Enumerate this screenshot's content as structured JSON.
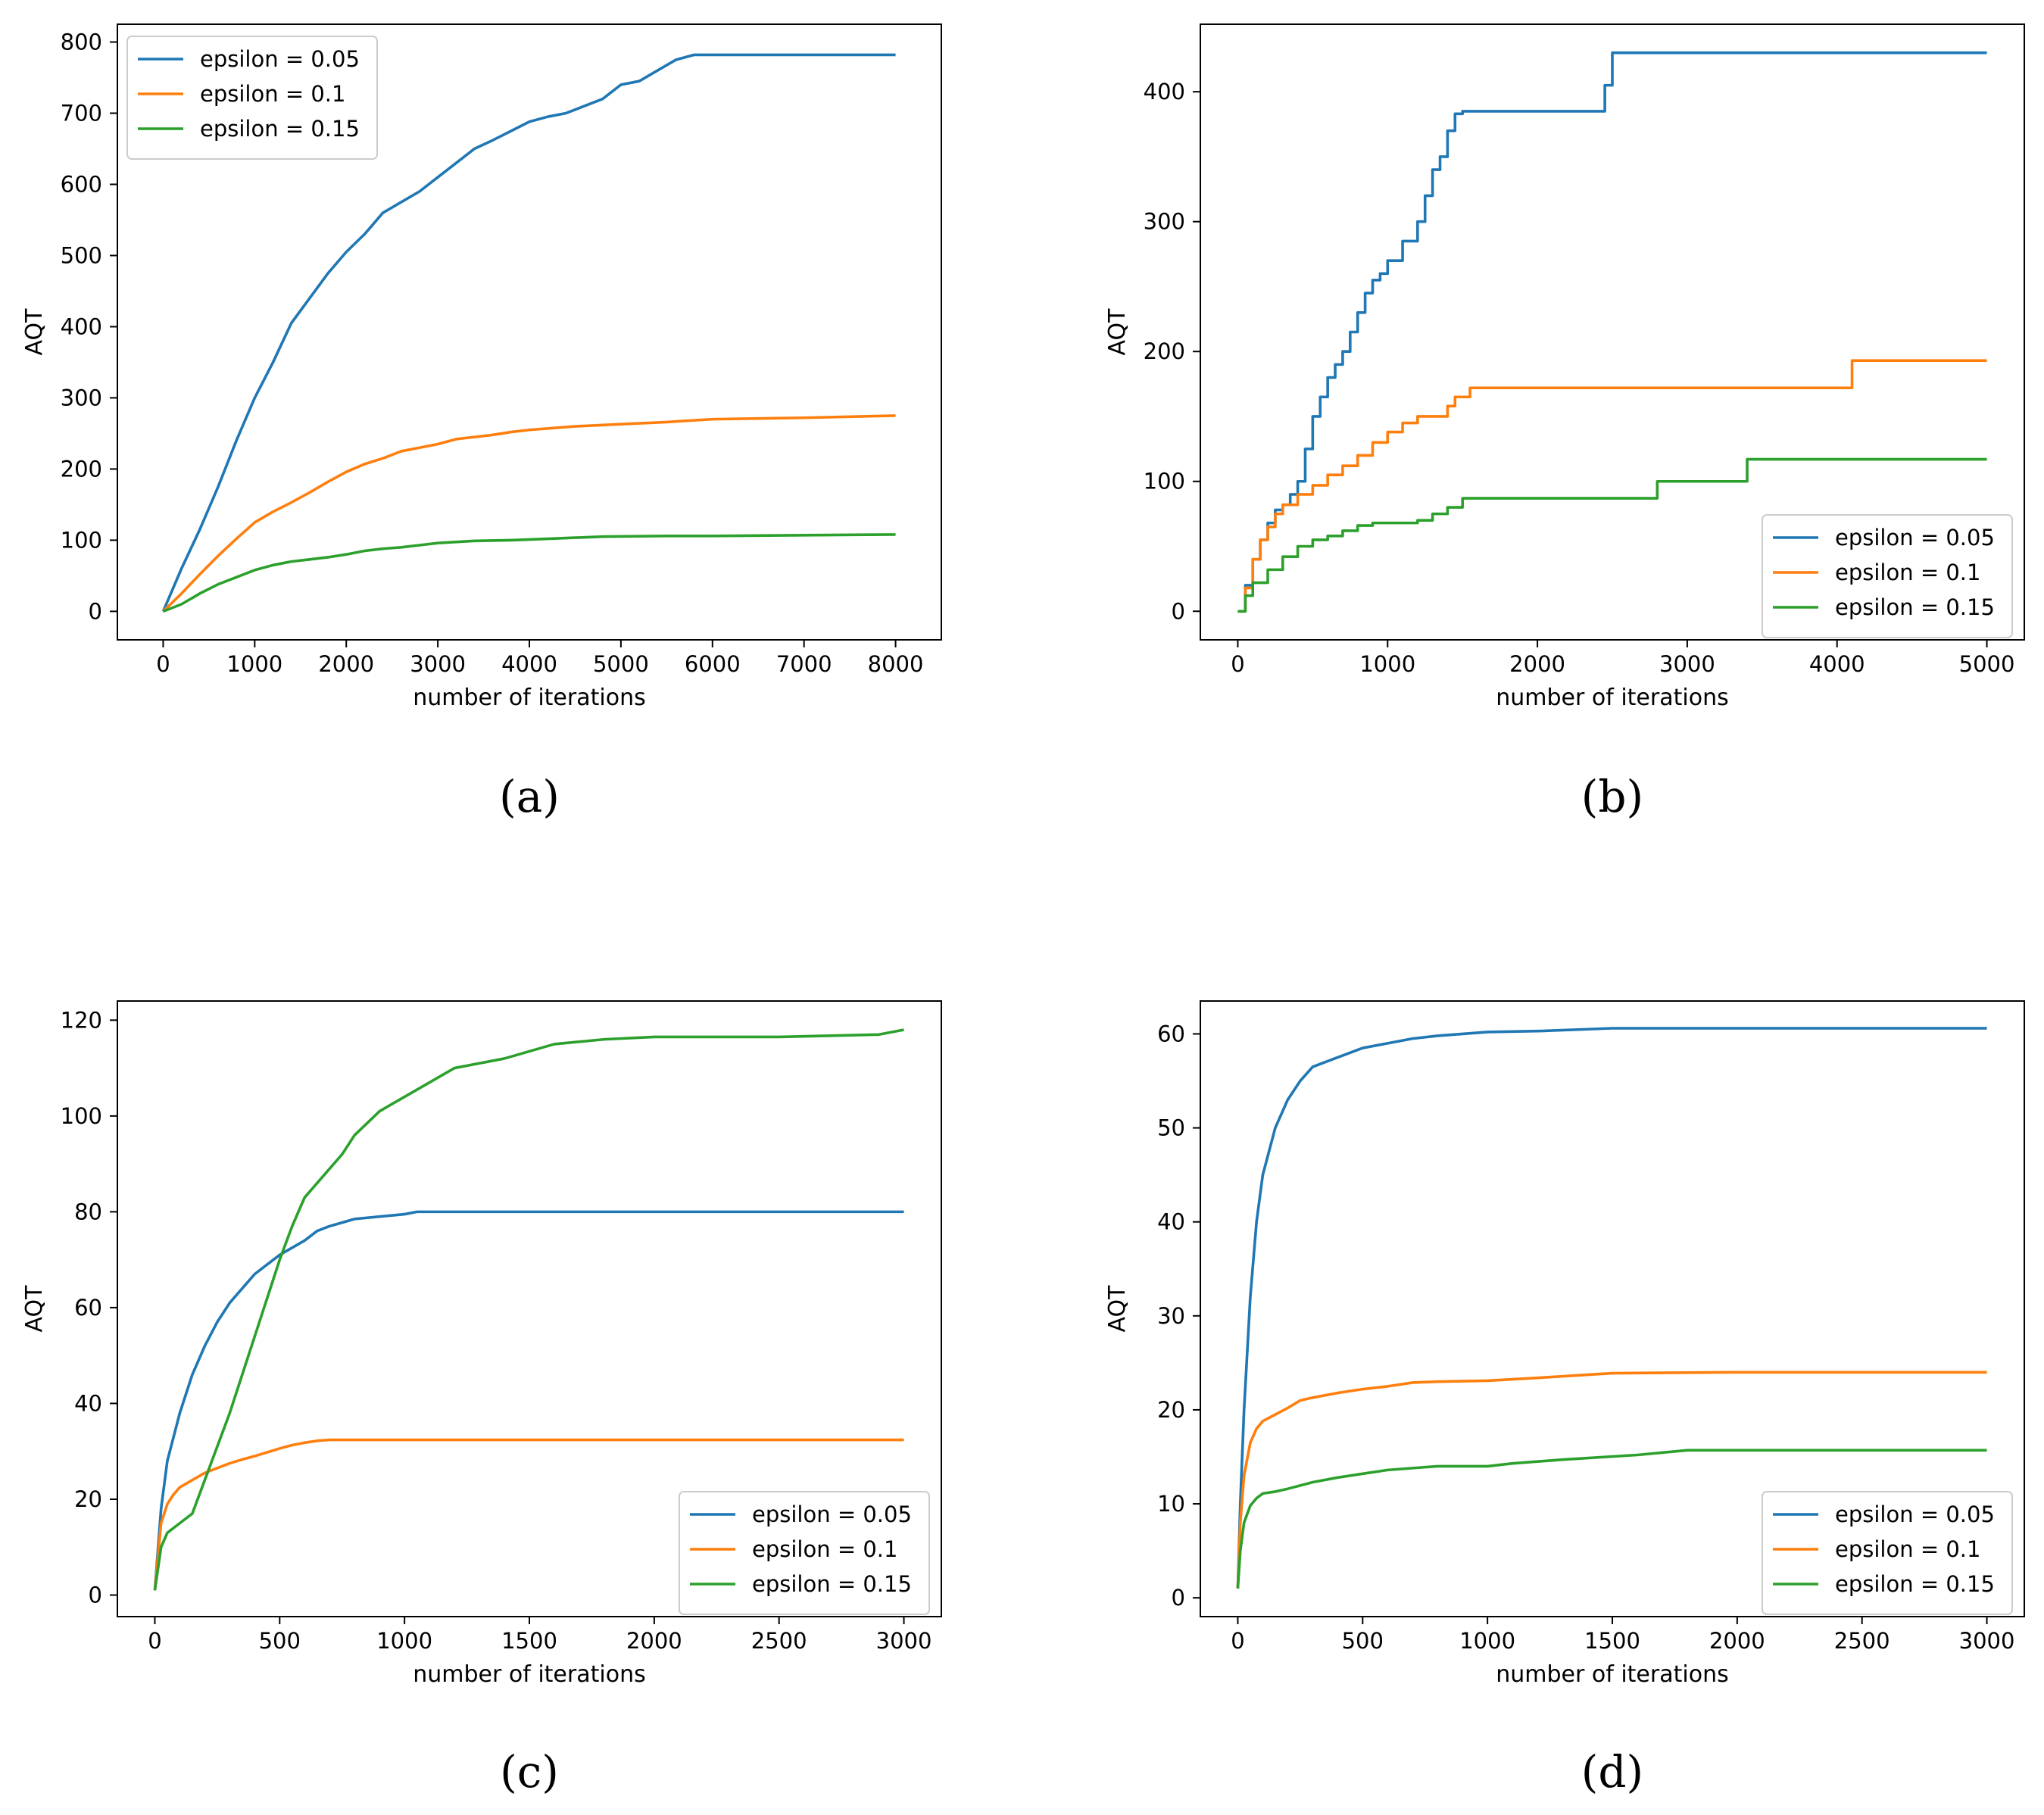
{
  "chart_data": [
    {
      "type": "line",
      "panel_label": "(a)",
      "xlabel": "number of iterations",
      "ylabel": "AQT",
      "xlim": [
        -500,
        8500
      ],
      "ylim": [
        -40,
        825
      ],
      "xticks": [
        0,
        1000,
        2000,
        3000,
        4000,
        5000,
        6000,
        7000,
        8000
      ],
      "yticks": [
        0,
        100,
        200,
        300,
        400,
        500,
        600,
        700,
        800
      ],
      "legend_position": "top-left",
      "step": false,
      "series": [
        {
          "name": "epsilon = 0.05",
          "color": "#1f77b4",
          "x": [
            0,
            200,
            400,
            600,
            800,
            1000,
            1200,
            1400,
            1600,
            1800,
            2000,
            2200,
            2400,
            2600,
            2800,
            3000,
            3200,
            3400,
            3600,
            3800,
            4000,
            4200,
            4400,
            4600,
            4800,
            5000,
            5200,
            5400,
            5600,
            5800,
            6000,
            7000,
            8000
          ],
          "y": [
            0,
            60,
            115,
            175,
            240,
            300,
            350,
            405,
            440,
            475,
            505,
            530,
            560,
            575,
            590,
            610,
            630,
            650,
            662,
            675,
            688,
            695,
            700,
            710,
            720,
            740,
            745,
            760,
            775,
            782,
            782,
            782,
            782
          ]
        },
        {
          "name": "epsilon = 0.1",
          "color": "#ff7f0e",
          "x": [
            0,
            200,
            400,
            600,
            800,
            1000,
            1200,
            1400,
            1600,
            1800,
            2000,
            2200,
            2400,
            2600,
            2800,
            3000,
            3200,
            3400,
            3600,
            3800,
            4000,
            4500,
            5000,
            5500,
            6000,
            7000,
            8000
          ],
          "y": [
            0,
            25,
            52,
            78,
            102,
            125,
            140,
            153,
            167,
            182,
            196,
            207,
            215,
            225,
            230,
            235,
            242,
            245,
            248,
            252,
            255,
            260,
            263,
            266,
            270,
            272,
            275
          ]
        },
        {
          "name": "epsilon = 0.15",
          "color": "#2ca02c",
          "x": [
            0,
            200,
            400,
            600,
            800,
            1000,
            1200,
            1400,
            1600,
            1800,
            2000,
            2200,
            2400,
            2600,
            2800,
            3000,
            3400,
            3800,
            4200,
            4800,
            5500,
            6000,
            7000,
            8000
          ],
          "y": [
            0,
            10,
            25,
            38,
            48,
            58,
            65,
            70,
            73,
            76,
            80,
            85,
            88,
            90,
            93,
            96,
            99,
            100,
            102,
            105,
            106,
            106,
            107,
            108
          ]
        }
      ]
    },
    {
      "type": "line",
      "panel_label": "(b)",
      "xlabel": "number of iterations",
      "ylabel": "AQT",
      "xlim": [
        -250,
        5250
      ],
      "ylim": [
        -22,
        452
      ],
      "xticks": [
        0,
        1000,
        2000,
        3000,
        4000,
        5000
      ],
      "yticks": [
        0,
        100,
        200,
        300,
        400
      ],
      "legend_position": "lower-right",
      "step": true,
      "series": [
        {
          "name": "epsilon = 0.05",
          "color": "#1f77b4",
          "x": [
            0,
            50,
            100,
            150,
            200,
            250,
            300,
            350,
            400,
            450,
            500,
            550,
            600,
            650,
            700,
            750,
            800,
            850,
            900,
            950,
            1000,
            1100,
            1200,
            1250,
            1300,
            1350,
            1400,
            1450,
            1500,
            2000,
            2400,
            2450,
            2500,
            3000,
            4000,
            5000
          ],
          "y": [
            0,
            20,
            40,
            55,
            68,
            78,
            82,
            90,
            100,
            125,
            150,
            165,
            180,
            190,
            200,
            215,
            230,
            245,
            255,
            260,
            270,
            285,
            300,
            320,
            340,
            350,
            370,
            383,
            385,
            385,
            385,
            405,
            430,
            430,
            430,
            430
          ]
        },
        {
          "name": "epsilon = 0.1",
          "color": "#ff7f0e",
          "x": [
            0,
            50,
            100,
            150,
            200,
            250,
            300,
            400,
            500,
            600,
            700,
            800,
            900,
            1000,
            1100,
            1200,
            1300,
            1400,
            1450,
            1550,
            2000,
            3000,
            4000,
            4100,
            5000
          ],
          "y": [
            0,
            18,
            40,
            55,
            65,
            75,
            82,
            90,
            97,
            105,
            112,
            120,
            130,
            138,
            145,
            150,
            150,
            158,
            165,
            172,
            172,
            172,
            172,
            193,
            193
          ]
        },
        {
          "name": "epsilon = 0.15",
          "color": "#2ca02c",
          "x": [
            0,
            50,
            100,
            200,
            300,
            400,
            500,
            600,
            700,
            800,
            900,
            1000,
            1200,
            1300,
            1400,
            1500,
            2000,
            2800,
            3000,
            3400,
            4000,
            5000
          ],
          "y": [
            0,
            12,
            22,
            32,
            42,
            50,
            55,
            58,
            62,
            66,
            68,
            68,
            70,
            75,
            80,
            87,
            87,
            100,
            100,
            117,
            117,
            117
          ]
        }
      ]
    },
    {
      "type": "line",
      "panel_label": "(c)",
      "xlabel": "number of iterations",
      "ylabel": "AQT",
      "xlim": [
        -150,
        3150
      ],
      "ylim": [
        -4.5,
        124
      ],
      "xticks": [
        0,
        500,
        1000,
        1500,
        2000,
        2500,
        3000
      ],
      "yticks": [
        0,
        20,
        40,
        60,
        80,
        100,
        120
      ],
      "legend_position": "lower-right",
      "step": false,
      "series": [
        {
          "name": "epsilon = 0.05",
          "color": "#1f77b4",
          "x": [
            0,
            25,
            50,
            100,
            150,
            200,
            250,
            300,
            350,
            400,
            450,
            500,
            550,
            600,
            650,
            700,
            800,
            900,
            1000,
            1050,
            1100,
            1500,
            2000,
            2500,
            3000
          ],
          "y": [
            1,
            18,
            28,
            38,
            46,
            52,
            57,
            61,
            64,
            67,
            69,
            71,
            72.5,
            74,
            76,
            77,
            78.5,
            79,
            79.5,
            80,
            80,
            80,
            80,
            80,
            80
          ]
        },
        {
          "name": "epsilon = 0.1",
          "color": "#ff7f0e",
          "x": [
            0,
            25,
            50,
            75,
            100,
            150,
            200,
            250,
            300,
            350,
            400,
            450,
            500,
            550,
            600,
            650,
            700,
            1000,
            2000,
            3000
          ],
          "y": [
            1,
            15,
            19,
            21,
            22.5,
            24,
            25.5,
            26.5,
            27.5,
            28.3,
            29,
            29.8,
            30.6,
            31.3,
            31.8,
            32.2,
            32.4,
            32.4,
            32.4,
            32.4
          ]
        },
        {
          "name": "epsilon = 0.15",
          "color": "#2ca02c",
          "x": [
            0,
            25,
            50,
            100,
            150,
            200,
            250,
            300,
            350,
            400,
            450,
            500,
            550,
            600,
            650,
            700,
            750,
            800,
            900,
            1000,
            1100,
            1200,
            1400,
            1600,
            1800,
            2000,
            2500,
            2900,
            3000
          ],
          "y": [
            1,
            10,
            13,
            15,
            17,
            24,
            31,
            38,
            46,
            54,
            62,
            70,
            77,
            83,
            86,
            89,
            92,
            96,
            101,
            104,
            107,
            110,
            112,
            115,
            116,
            116.5,
            116.5,
            117,
            118
          ]
        }
      ]
    },
    {
      "type": "line",
      "panel_label": "(d)",
      "xlabel": "number of iterations",
      "ylabel": "AQT",
      "xlim": [
        -150,
        3150
      ],
      "ylim": [
        -2,
        63.5
      ],
      "xticks": [
        0,
        500,
        1000,
        1500,
        2000,
        2500,
        3000
      ],
      "yticks": [
        0,
        10,
        20,
        30,
        40,
        50,
        60
      ],
      "legend_position": "lower-right",
      "step": false,
      "series": [
        {
          "name": "epsilon = 0.05",
          "color": "#1f77b4",
          "x": [
            0,
            10,
            25,
            50,
            75,
            100,
            150,
            200,
            250,
            300,
            400,
            500,
            600,
            700,
            800,
            900,
            1000,
            1200,
            1400,
            1500,
            2000,
            2500,
            3000
          ],
          "y": [
            1,
            10,
            20,
            32,
            40,
            45,
            50,
            53,
            55,
            56.5,
            57.5,
            58.5,
            59,
            59.5,
            59.8,
            60,
            60.2,
            60.3,
            60.5,
            60.6,
            60.6,
            60.6,
            60.6
          ]
        },
        {
          "name": "epsilon = 0.1",
          "color": "#ff7f0e",
          "x": [
            0,
            10,
            25,
            50,
            75,
            100,
            150,
            200,
            250,
            300,
            400,
            500,
            600,
            700,
            800,
            1000,
            1200,
            1500,
            2000,
            2500,
            3000
          ],
          "y": [
            1,
            8,
            13,
            16.5,
            18,
            18.8,
            19.5,
            20.2,
            21,
            21.3,
            21.8,
            22.2,
            22.5,
            22.9,
            23,
            23.1,
            23.4,
            23.9,
            24,
            24,
            24
          ]
        },
        {
          "name": "epsilon = 0.15",
          "color": "#2ca02c",
          "x": [
            0,
            10,
            25,
            50,
            75,
            100,
            150,
            200,
            300,
            400,
            500,
            600,
            700,
            800,
            1000,
            1100,
            1300,
            1600,
            1800,
            2000,
            2500,
            3000
          ],
          "y": [
            1,
            5,
            8,
            9.8,
            10.6,
            11.1,
            11.3,
            11.6,
            12.3,
            12.8,
            13.2,
            13.6,
            13.8,
            14,
            14,
            14.3,
            14.7,
            15.2,
            15.7,
            15.7,
            15.7,
            15.7
          ]
        }
      ]
    }
  ]
}
